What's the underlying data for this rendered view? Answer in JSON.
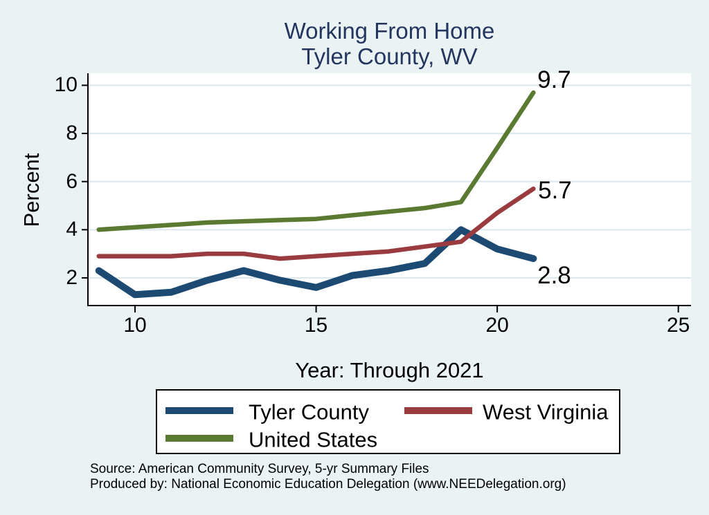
{
  "title": {
    "line1": "Working From Home",
    "line2": "Tyler County, WV"
  },
  "colors": {
    "background": "#eaf2f3",
    "plot_background": "#ffffff",
    "gridline": "#dce8ec",
    "axis": "#000000",
    "title_text": "#24365f",
    "tyler_county": "#1c4a72",
    "west_virginia": "#9a3b40",
    "united_states": "#5a7a32"
  },
  "legend": {
    "items": [
      {
        "label": "Tyler County",
        "color": "#1c4a72"
      },
      {
        "label": "West Virginia",
        "color": "#9a3b40"
      },
      {
        "label": "United States",
        "color": "#5a7a32"
      }
    ]
  },
  "source": {
    "line1": "Source: American Community Survey, 5-yr Summary Files",
    "line2": "Produced by: National Economic Education Delegation (www.NEEDelegation.org)"
  },
  "chart_data": {
    "type": "line",
    "title": "Working From Home - Tyler County, WV",
    "xlabel": "Year: Through 2021",
    "ylabel": "Percent",
    "x": [
      9,
      10,
      11,
      12,
      13,
      14,
      15,
      16,
      17,
      18,
      19,
      20,
      21
    ],
    "series": [
      {
        "name": "Tyler County",
        "color": "#1c4a72",
        "line_width": 10,
        "values": [
          2.3,
          1.3,
          1.4,
          1.9,
          2.3,
          1.9,
          1.6,
          2.1,
          2.3,
          2.6,
          4.0,
          3.2,
          2.8
        ]
      },
      {
        "name": "West Virginia",
        "color": "#9a3b40",
        "line_width": 6.5,
        "values": [
          2.9,
          2.9,
          2.9,
          3.0,
          3.0,
          2.8,
          2.9,
          3.0,
          3.1,
          3.3,
          3.5,
          4.7,
          5.7
        ]
      },
      {
        "name": "United States",
        "color": "#5a7a32",
        "line_width": 6.5,
        "values": [
          4.0,
          4.1,
          4.2,
          4.3,
          4.35,
          4.4,
          4.45,
          4.6,
          4.75,
          4.9,
          5.15,
          7.4,
          9.7
        ]
      }
    ],
    "annotations": [
      {
        "text": "9.7",
        "x": 21,
        "y": 9.7
      },
      {
        "text": "5.7",
        "x": 21,
        "y": 5.7
      },
      {
        "text": "2.8",
        "x": 21,
        "y": 2.8
      }
    ],
    "xticks": [
      10,
      15,
      20,
      25
    ],
    "yticks": [
      2,
      4,
      6,
      8,
      10
    ],
    "xlim": [
      8.7,
      25.35
    ],
    "ylim": [
      0.85,
      10.5
    ],
    "grid": true,
    "legend_position": "bottom"
  }
}
